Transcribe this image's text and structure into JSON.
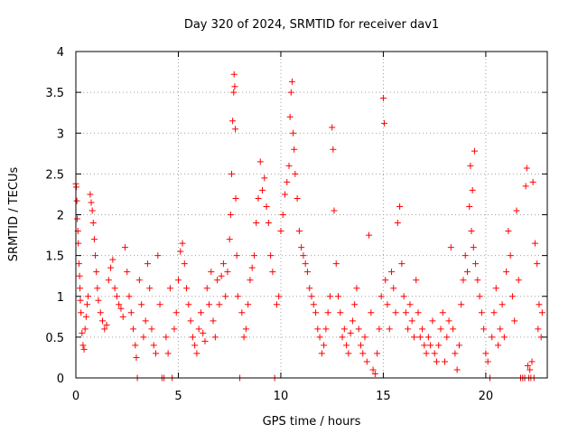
{
  "chart_data": {
    "type": "scatter",
    "title": "Day 320 of 2024, SRMTID for receiver dav1",
    "xlabel": "GPS time / hours",
    "ylabel": "SRMTID / TECUs",
    "xlim": [
      0,
      23
    ],
    "ylim": [
      0,
      4
    ],
    "x_ticks": [
      0,
      5,
      10,
      15,
      20
    ],
    "x_tick_labels": [
      "0",
      "5",
      "10",
      "15",
      "20"
    ],
    "y_ticks": [
      0,
      0.5,
      1,
      1.5,
      2,
      2.5,
      3,
      3.5,
      4
    ],
    "y_tick_labels": [
      "0",
      "0.5",
      "1",
      "1.5",
      "2",
      "2.5",
      "3",
      "3.5",
      "4"
    ],
    "grid": true,
    "marker": "+",
    "color": "#ff0000",
    "series": [
      {
        "name": "SRMTID",
        "points": [
          [
            0.0,
            2.38
          ],
          [
            0.02,
            2.34
          ],
          [
            0.05,
            2.17
          ],
          [
            0.07,
            1.95
          ],
          [
            0.1,
            1.8
          ],
          [
            0.12,
            1.65
          ],
          [
            0.15,
            1.4
          ],
          [
            0.18,
            1.25
          ],
          [
            0.2,
            1.1
          ],
          [
            0.22,
            0.95
          ],
          [
            0.25,
            0.8
          ],
          [
            0.3,
            0.55
          ],
          [
            0.35,
            0.4
          ],
          [
            0.4,
            0.35
          ],
          [
            0.45,
            0.6
          ],
          [
            0.5,
            0.75
          ],
          [
            0.55,
            0.9
          ],
          [
            0.6,
            1.0
          ],
          [
            0.7,
            2.25
          ],
          [
            0.75,
            2.15
          ],
          [
            0.8,
            2.05
          ],
          [
            0.85,
            1.9
          ],
          [
            0.9,
            1.7
          ],
          [
            0.95,
            1.5
          ],
          [
            1.0,
            1.3
          ],
          [
            1.05,
            1.1
          ],
          [
            1.1,
            0.95
          ],
          [
            1.2,
            0.8
          ],
          [
            1.3,
            0.7
          ],
          [
            1.4,
            0.6
          ],
          [
            1.5,
            0.65
          ],
          [
            1.6,
            1.2
          ],
          [
            1.7,
            1.35
          ],
          [
            1.8,
            1.45
          ],
          [
            1.9,
            1.1
          ],
          [
            2.0,
            1.0
          ],
          [
            2.1,
            0.9
          ],
          [
            2.2,
            0.85
          ],
          [
            2.3,
            0.75
          ],
          [
            2.4,
            1.6
          ],
          [
            2.5,
            1.3
          ],
          [
            2.6,
            1.0
          ],
          [
            2.7,
            0.8
          ],
          [
            2.8,
            0.6
          ],
          [
            2.9,
            0.4
          ],
          [
            2.95,
            0.25
          ],
          [
            3.0,
            0.0
          ],
          [
            3.1,
            1.2
          ],
          [
            3.2,
            0.9
          ],
          [
            3.3,
            0.5
          ],
          [
            3.4,
            0.7
          ],
          [
            3.5,
            1.4
          ],
          [
            3.6,
            1.1
          ],
          [
            3.7,
            0.6
          ],
          [
            3.8,
            0.4
          ],
          [
            3.9,
            0.3
          ],
          [
            4.0,
            1.5
          ],
          [
            4.1,
            0.9
          ],
          [
            4.2,
            0.0
          ],
          [
            4.3,
            0.0
          ],
          [
            4.4,
            0.5
          ],
          [
            4.5,
            0.3
          ],
          [
            4.6,
            1.1
          ],
          [
            4.7,
            0.0
          ],
          [
            4.8,
            0.6
          ],
          [
            4.9,
            0.8
          ],
          [
            5.0,
            1.2
          ],
          [
            5.1,
            1.55
          ],
          [
            5.2,
            1.65
          ],
          [
            5.3,
            1.4
          ],
          [
            5.4,
            1.1
          ],
          [
            5.5,
            0.9
          ],
          [
            5.6,
            0.7
          ],
          [
            5.7,
            0.5
          ],
          [
            5.8,
            0.4
          ],
          [
            5.9,
            0.3
          ],
          [
            6.0,
            0.6
          ],
          [
            6.1,
            0.8
          ],
          [
            6.2,
            0.55
          ],
          [
            6.3,
            0.45
          ],
          [
            6.4,
            1.1
          ],
          [
            6.5,
            0.9
          ],
          [
            6.6,
            1.3
          ],
          [
            6.7,
            0.7
          ],
          [
            6.8,
            0.5
          ],
          [
            6.9,
            1.2
          ],
          [
            7.0,
            0.9
          ],
          [
            7.1,
            1.25
          ],
          [
            7.2,
            1.4
          ],
          [
            7.3,
            1.0
          ],
          [
            7.4,
            1.3
          ],
          [
            7.5,
            1.7
          ],
          [
            7.55,
            2.0
          ],
          [
            7.6,
            2.5
          ],
          [
            7.65,
            3.15
          ],
          [
            7.7,
            3.5
          ],
          [
            7.72,
            3.72
          ],
          [
            7.75,
            3.57
          ],
          [
            7.78,
            3.05
          ],
          [
            7.8,
            2.2
          ],
          [
            7.85,
            1.5
          ],
          [
            7.9,
            1.0
          ],
          [
            8.0,
            0.0
          ],
          [
            8.1,
            0.8
          ],
          [
            8.2,
            0.5
          ],
          [
            8.3,
            0.6
          ],
          [
            8.4,
            0.9
          ],
          [
            8.5,
            1.2
          ],
          [
            8.6,
            1.35
          ],
          [
            8.7,
            1.5
          ],
          [
            8.8,
            1.9
          ],
          [
            8.9,
            2.2
          ],
          [
            9.0,
            2.65
          ],
          [
            9.1,
            2.3
          ],
          [
            9.2,
            2.45
          ],
          [
            9.3,
            2.1
          ],
          [
            9.4,
            1.9
          ],
          [
            9.5,
            1.5
          ],
          [
            9.6,
            1.3
          ],
          [
            9.7,
            0.0
          ],
          [
            9.8,
            0.9
          ],
          [
            9.9,
            1.0
          ],
          [
            10.0,
            1.8
          ],
          [
            10.1,
            2.0
          ],
          [
            10.2,
            2.25
          ],
          [
            10.3,
            2.4
          ],
          [
            10.4,
            2.6
          ],
          [
            10.45,
            3.2
          ],
          [
            10.5,
            3.5
          ],
          [
            10.55,
            3.63
          ],
          [
            10.6,
            3.0
          ],
          [
            10.65,
            2.8
          ],
          [
            10.7,
            2.5
          ],
          [
            10.8,
            2.2
          ],
          [
            10.9,
            1.8
          ],
          [
            11.0,
            1.6
          ],
          [
            11.1,
            1.5
          ],
          [
            11.2,
            1.4
          ],
          [
            11.3,
            1.3
          ],
          [
            11.4,
            1.1
          ],
          [
            11.5,
            1.0
          ],
          [
            11.6,
            0.9
          ],
          [
            11.7,
            0.8
          ],
          [
            11.8,
            0.6
          ],
          [
            11.9,
            0.5
          ],
          [
            12.0,
            0.3
          ],
          [
            12.1,
            0.4
          ],
          [
            12.2,
            0.6
          ],
          [
            12.3,
            0.8
          ],
          [
            12.4,
            1.0
          ],
          [
            12.5,
            3.07
          ],
          [
            12.55,
            2.8
          ],
          [
            12.6,
            2.05
          ],
          [
            12.7,
            1.4
          ],
          [
            12.8,
            1.0
          ],
          [
            12.9,
            0.8
          ],
          [
            13.0,
            0.5
          ],
          [
            13.1,
            0.6
          ],
          [
            13.2,
            0.4
          ],
          [
            13.3,
            0.3
          ],
          [
            13.4,
            0.55
          ],
          [
            13.5,
            0.7
          ],
          [
            13.6,
            0.9
          ],
          [
            13.7,
            1.1
          ],
          [
            13.8,
            0.6
          ],
          [
            13.9,
            0.4
          ],
          [
            14.0,
            0.3
          ],
          [
            14.1,
            0.5
          ],
          [
            14.2,
            0.2
          ],
          [
            14.3,
            1.75
          ],
          [
            14.4,
            0.8
          ],
          [
            14.5,
            0.1
          ],
          [
            14.6,
            0.05
          ],
          [
            14.7,
            0.3
          ],
          [
            14.8,
            0.6
          ],
          [
            14.9,
            1.0
          ],
          [
            15.0,
            3.43
          ],
          [
            15.05,
            3.12
          ],
          [
            15.1,
            1.2
          ],
          [
            15.2,
            0.9
          ],
          [
            15.3,
            0.6
          ],
          [
            15.4,
            1.3
          ],
          [
            15.5,
            1.1
          ],
          [
            15.6,
            0.8
          ],
          [
            15.7,
            1.9
          ],
          [
            15.8,
            2.1
          ],
          [
            15.9,
            1.4
          ],
          [
            16.0,
            1.0
          ],
          [
            16.1,
            0.8
          ],
          [
            16.2,
            0.6
          ],
          [
            16.3,
            0.9
          ],
          [
            16.4,
            0.7
          ],
          [
            16.5,
            0.5
          ],
          [
            16.6,
            1.2
          ],
          [
            16.7,
            0.8
          ],
          [
            16.8,
            0.5
          ],
          [
            16.9,
            0.6
          ],
          [
            17.0,
            0.4
          ],
          [
            17.1,
            0.3
          ],
          [
            17.2,
            0.5
          ],
          [
            17.3,
            0.4
          ],
          [
            17.4,
            0.7
          ],
          [
            17.5,
            0.3
          ],
          [
            17.6,
            0.2
          ],
          [
            17.7,
            0.4
          ],
          [
            17.8,
            0.6
          ],
          [
            17.9,
            0.8
          ],
          [
            18.0,
            0.2
          ],
          [
            18.1,
            0.5
          ],
          [
            18.2,
            0.7
          ],
          [
            18.3,
            1.6
          ],
          [
            18.4,
            0.6
          ],
          [
            18.5,
            0.3
          ],
          [
            18.6,
            0.1
          ],
          [
            18.7,
            0.4
          ],
          [
            18.8,
            0.9
          ],
          [
            18.9,
            1.2
          ],
          [
            19.0,
            1.5
          ],
          [
            19.1,
            1.3
          ],
          [
            19.2,
            2.1
          ],
          [
            19.25,
            2.6
          ],
          [
            19.3,
            1.8
          ],
          [
            19.35,
            2.3
          ],
          [
            19.4,
            1.6
          ],
          [
            19.45,
            2.78
          ],
          [
            19.5,
            1.4
          ],
          [
            19.6,
            1.2
          ],
          [
            19.7,
            1.0
          ],
          [
            19.8,
            0.8
          ],
          [
            19.9,
            0.6
          ],
          [
            20.0,
            0.3
          ],
          [
            20.1,
            0.2
          ],
          [
            20.2,
            0.0
          ],
          [
            20.3,
            0.5
          ],
          [
            20.4,
            0.8
          ],
          [
            20.5,
            1.1
          ],
          [
            20.6,
            0.4
          ],
          [
            20.7,
            0.6
          ],
          [
            20.8,
            0.9
          ],
          [
            20.9,
            0.5
          ],
          [
            21.0,
            1.3
          ],
          [
            21.1,
            1.8
          ],
          [
            21.2,
            1.5
          ],
          [
            21.3,
            1.0
          ],
          [
            21.4,
            0.7
          ],
          [
            21.5,
            2.05
          ],
          [
            21.6,
            1.2
          ],
          [
            21.7,
            0.0
          ],
          [
            21.8,
            0.0
          ],
          [
            21.9,
            0.0
          ],
          [
            21.95,
            2.35
          ],
          [
            22.0,
            2.57
          ],
          [
            22.05,
            0.15
          ],
          [
            22.1,
            0.0
          ],
          [
            22.15,
            0.1
          ],
          [
            22.2,
            0.0
          ],
          [
            22.25,
            0.2
          ],
          [
            22.3,
            2.4
          ],
          [
            22.35,
            0.0
          ],
          [
            22.4,
            1.65
          ],
          [
            22.5,
            1.4
          ],
          [
            22.55,
            0.6
          ],
          [
            22.6,
            0.9
          ],
          [
            22.7,
            0.5
          ],
          [
            22.75,
            0.8
          ]
        ]
      }
    ]
  }
}
